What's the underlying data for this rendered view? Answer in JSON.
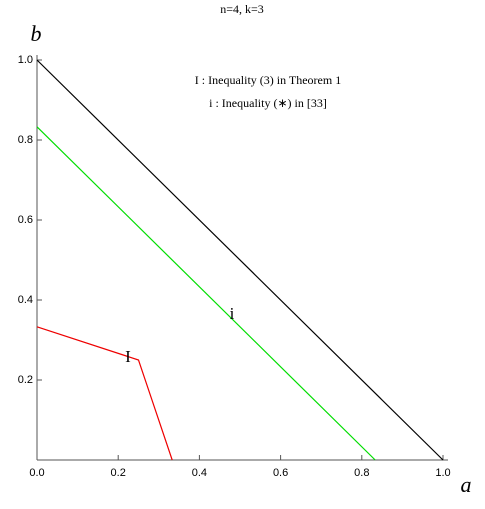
{
  "chart_data": {
    "type": "line",
    "title": "n=4, k=3",
    "x_label": "a",
    "y_label": "b",
    "annotations": [
      "I : Inequality (3) in Theorem 1",
      "i : Inequality (∗) in [33]"
    ],
    "xlim": [
      0,
      1
    ],
    "ylim": [
      0,
      1
    ],
    "xticks": [
      {
        "value": 0,
        "label": "0.0"
      },
      0.2,
      0.4,
      0.6,
      0.8,
      {
        "value": 1,
        "label": "1.0"
      }
    ],
    "yticks": [
      0.2,
      0.4,
      0.6,
      0.8,
      {
        "value": 1,
        "label": "1.0"
      }
    ],
    "series": [
      {
        "color": "#000000",
        "x": [
          0,
          1
        ],
        "values": [
          1,
          0
        ]
      },
      {
        "name": "i",
        "color": "#00dd00",
        "x": [
          0,
          0.833
        ],
        "values": [
          0.833,
          0
        ]
      },
      {
        "name": "I",
        "color": "#ee0000",
        "x": [
          0,
          0.25,
          0.333
        ],
        "values": [
          0.333,
          0.25,
          0
        ]
      }
    ]
  }
}
